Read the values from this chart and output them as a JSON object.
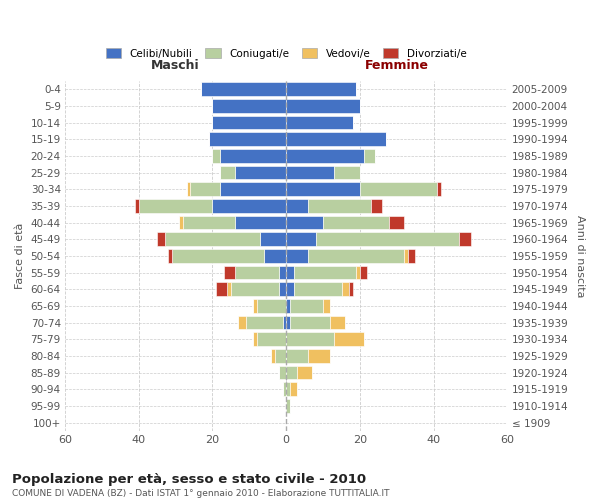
{
  "age_groups": [
    "100+",
    "95-99",
    "90-94",
    "85-89",
    "80-84",
    "75-79",
    "70-74",
    "65-69",
    "60-64",
    "55-59",
    "50-54",
    "45-49",
    "40-44",
    "35-39",
    "30-34",
    "25-29",
    "20-24",
    "15-19",
    "10-14",
    "5-9",
    "0-4"
  ],
  "birth_years": [
    "≤ 1909",
    "1910-1914",
    "1915-1919",
    "1920-1924",
    "1925-1929",
    "1930-1934",
    "1935-1939",
    "1940-1944",
    "1945-1949",
    "1950-1954",
    "1955-1959",
    "1960-1964",
    "1965-1969",
    "1970-1974",
    "1975-1979",
    "1980-1984",
    "1985-1989",
    "1990-1994",
    "1995-1999",
    "2000-2004",
    "2005-2009"
  ],
  "males_celibi": [
    0,
    0,
    0,
    0,
    0,
    0,
    1,
    0,
    2,
    2,
    6,
    7,
    14,
    20,
    18,
    14,
    18,
    21,
    20,
    20,
    23
  ],
  "males_coniugati": [
    0,
    0,
    1,
    2,
    3,
    8,
    10,
    8,
    13,
    12,
    25,
    26,
    14,
    20,
    8,
    4,
    2,
    0,
    0,
    0,
    0
  ],
  "males_vedovi": [
    0,
    0,
    0,
    0,
    1,
    1,
    2,
    1,
    1,
    0,
    0,
    0,
    1,
    0,
    1,
    0,
    0,
    0,
    0,
    0,
    0
  ],
  "males_divorziati": [
    0,
    0,
    0,
    0,
    0,
    0,
    0,
    0,
    3,
    3,
    1,
    2,
    0,
    1,
    0,
    0,
    0,
    0,
    0,
    0,
    0
  ],
  "females_nubili": [
    0,
    0,
    0,
    0,
    0,
    0,
    1,
    1,
    2,
    2,
    6,
    8,
    10,
    6,
    20,
    13,
    21,
    27,
    18,
    20,
    19
  ],
  "females_coniugate": [
    0,
    1,
    1,
    3,
    6,
    13,
    11,
    9,
    13,
    17,
    26,
    39,
    18,
    17,
    21,
    7,
    3,
    0,
    0,
    0,
    0
  ],
  "females_vedove": [
    0,
    0,
    2,
    4,
    6,
    8,
    4,
    2,
    2,
    1,
    1,
    0,
    0,
    0,
    0,
    0,
    0,
    0,
    0,
    0,
    0
  ],
  "females_divorziate": [
    0,
    0,
    0,
    0,
    0,
    0,
    0,
    0,
    1,
    2,
    2,
    3,
    4,
    3,
    1,
    0,
    0,
    0,
    0,
    0,
    0
  ],
  "color_celibi": "#4472C4",
  "color_coniugati": "#b8cfa0",
  "color_vedovi": "#f0c060",
  "color_divorziati": "#c0392b",
  "xlim": 60,
  "title": "Popolazione per età, sesso e stato civile - 2010",
  "subtitle": "COMUNE DI VADENA (BZ) - Dati ISTAT 1° gennaio 2010 - Elaborazione TUTTITALIA.IT",
  "label_maschi": "Maschi",
  "label_femmine": "Femmine",
  "label_fasce": "Fasce di età",
  "label_anni": "Anni di nascita",
  "legend_labels": [
    "Celibi/Nubili",
    "Coniugati/e",
    "Vedovi/e",
    "Divorziati/e"
  ],
  "bg_color": "#ffffff",
  "grid_color": "#cccccc",
  "text_color": "#555555",
  "title_color": "#222222",
  "maschi_color": "#333333",
  "femmine_color": "#8B0000"
}
